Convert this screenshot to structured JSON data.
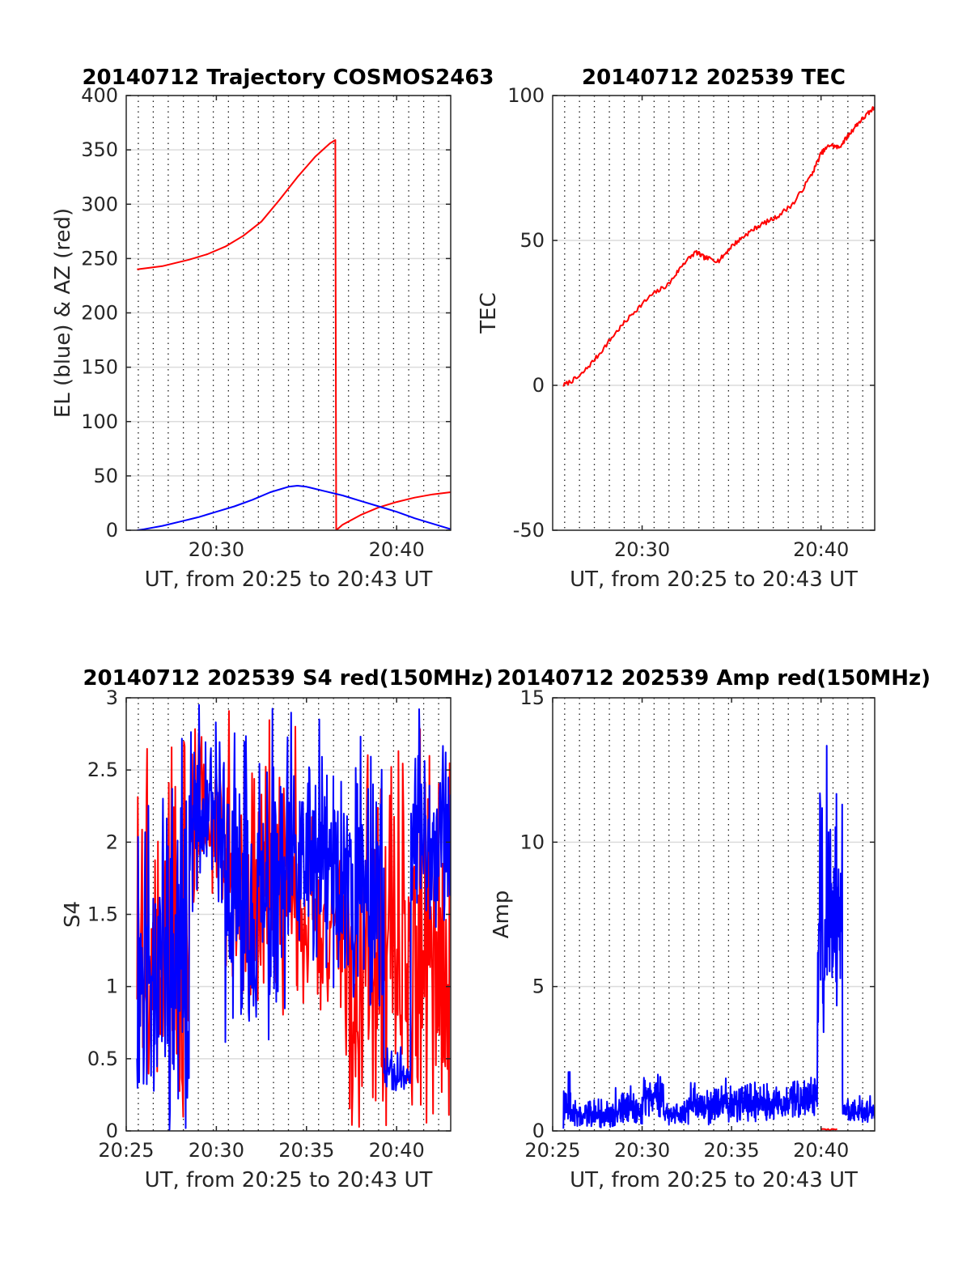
{
  "figure": {
    "background": "#ffffff",
    "colors": {
      "red": "#ff0000",
      "blue": "#0000ff",
      "axis": "#262626",
      "grid": "#dcdcdc"
    }
  },
  "chart_data": [
    {
      "id": "traj",
      "type": "line",
      "title": "20140712 Trajectory COSMOS2463",
      "xlabel": "UT, from 20:25 to 20:43 UT",
      "ylabel": "EL (blue) & AZ (red)",
      "xlim": [
        25,
        43
      ],
      "ylim": [
        0,
        400
      ],
      "yticks": [
        0,
        50,
        100,
        150,
        200,
        250,
        300,
        350,
        400
      ],
      "xticks": [
        {
          "v": 30,
          "label": "20:30"
        },
        {
          "v": 40,
          "label": "20:40"
        }
      ],
      "grid": true,
      "series": [
        {
          "color": "#ff0000",
          "kind": "polyline",
          "points": [
            [
              25.6,
              240
            ],
            [
              27,
              243
            ],
            [
              28.5,
              249
            ],
            [
              29.5,
              254
            ],
            [
              30.5,
              261
            ],
            [
              31.5,
              271
            ],
            [
              32.5,
              284
            ],
            [
              33.5,
              304
            ],
            [
              34.5,
              325
            ],
            [
              35.5,
              344
            ],
            [
              36.3,
              356
            ],
            [
              36.6,
              359
            ],
            [
              36.65,
              0
            ],
            [
              37,
              5
            ],
            [
              38,
              14
            ],
            [
              39,
              21
            ],
            [
              40,
              26
            ],
            [
              41,
              30
            ],
            [
              42,
              33
            ],
            [
              43,
              35
            ]
          ]
        },
        {
          "color": "#0000ff",
          "kind": "polyline",
          "points": [
            [
              25.6,
              0
            ],
            [
              26,
              1
            ],
            [
              27,
              4
            ],
            [
              28,
              8
            ],
            [
              29,
              12
            ],
            [
              30,
              17
            ],
            [
              31,
              22
            ],
            [
              32,
              28
            ],
            [
              33,
              35
            ],
            [
              34,
              40
            ],
            [
              34.5,
              41
            ],
            [
              35,
              40
            ],
            [
              36,
              36
            ],
            [
              37,
              32
            ],
            [
              38,
              27
            ],
            [
              39,
              22
            ],
            [
              40,
              17
            ],
            [
              41,
              11
            ],
            [
              42,
              6
            ],
            [
              43,
              1
            ]
          ]
        }
      ]
    },
    {
      "id": "tec",
      "type": "line",
      "title": "20140712 202539 TEC",
      "xlabel": "UT, from 20:25 to 20:43 UT",
      "ylabel": "TEC",
      "xlim": [
        25,
        43
      ],
      "ylim": [
        -50,
        100
      ],
      "yticks": [
        -50,
        0,
        50,
        100
      ],
      "xticks": [
        {
          "v": 30,
          "label": "20:30"
        },
        {
          "v": 40,
          "label": "20:40"
        }
      ],
      "grid": true,
      "series": [
        {
          "color": "#ff0000",
          "kind": "noisy",
          "seed": 7,
          "noise": 0.8,
          "points": [
            [
              25.6,
              0
            ],
            [
              26.5,
              3
            ],
            [
              27.5,
              10
            ],
            [
              28.5,
              18
            ],
            [
              29.5,
              25
            ],
            [
              30.5,
              31
            ],
            [
              31.5,
              35
            ],
            [
              32.3,
              42
            ],
            [
              33,
              46
            ],
            [
              33.5,
              44
            ],
            [
              34.3,
              43
            ],
            [
              35,
              48
            ],
            [
              35.8,
              52
            ],
            [
              36.5,
              55
            ],
            [
              37.5,
              58
            ],
            [
              38.5,
              63
            ],
            [
              39.5,
              73
            ],
            [
              40,
              80
            ],
            [
              40.5,
              83
            ],
            [
              41,
              82
            ],
            [
              41.5,
              86
            ],
            [
              42,
              90
            ],
            [
              42.5,
              93
            ],
            [
              43,
              96
            ]
          ]
        }
      ]
    },
    {
      "id": "s4",
      "type": "line",
      "title": "20140712 202539 S4 red(150MHz)",
      "xlabel": "UT, from 20:25 to 20:43 UT",
      "ylabel": "S4",
      "xlim": [
        25,
        43
      ],
      "ylim": [
        0,
        3
      ],
      "yticks": [
        0,
        0.5,
        1,
        1.5,
        2,
        2.5,
        3
      ],
      "xticks": [
        {
          "v": 25,
          "label": "20:25"
        },
        {
          "v": 30,
          "label": "20:30"
        },
        {
          "v": 35,
          "label": "20:35"
        },
        {
          "v": 40,
          "label": "20:40"
        }
      ],
      "grid": true,
      "series": [
        {
          "color": "#ff0000",
          "kind": "spikes",
          "seed": 3,
          "step": 0.04,
          "segments": [
            [
              25.6,
              28.5,
              0.0,
              3.0
            ],
            [
              28.5,
              30.5,
              1.5,
              3.0
            ],
            [
              30.5,
              34.5,
              0.8,
              3.0
            ],
            [
              34.5,
              37,
              0.8,
              2.4
            ],
            [
              37,
              39.3,
              0.0,
              3.0
            ],
            [
              39.3,
              43,
              0.0,
              3.0
            ]
          ]
        },
        {
          "color": "#0000ff",
          "kind": "spikes",
          "seed": 11,
          "step": 0.03,
          "segments": [
            [
              25.6,
              28.5,
              0.0,
              3.0
            ],
            [
              28.5,
              30.5,
              1.5,
              3.0
            ],
            [
              30.5,
              34,
              0.6,
              3.0
            ],
            [
              34,
              36.5,
              1.0,
              3.0
            ],
            [
              36.5,
              39.3,
              0.8,
              3.0
            ],
            [
              39.3,
              40.8,
              0.25,
              0.6
            ],
            [
              40.8,
              43,
              1.4,
              3.0
            ]
          ]
        }
      ]
    },
    {
      "id": "amp",
      "type": "line",
      "title": "20140712 202539 Amp red(150MHz)",
      "xlabel": "UT, from 20:25 to 20:43 UT",
      "ylabel": "Amp",
      "xlim": [
        25,
        43
      ],
      "ylim": [
        0,
        15
      ],
      "yticks": [
        0,
        5,
        10,
        15
      ],
      "xticks": [
        {
          "v": 25,
          "label": "20:25"
        },
        {
          "v": 30,
          "label": "20:30"
        },
        {
          "v": 35,
          "label": "20:35"
        },
        {
          "v": 40,
          "label": "20:40"
        }
      ],
      "grid": true,
      "series": [
        {
          "color": "#ff0000",
          "kind": "spikes",
          "seed": 5,
          "step": 0.1,
          "segments": [
            [
              40,
              41,
              0.0,
              0.15
            ]
          ]
        },
        {
          "color": "#0000ff",
          "kind": "spikes",
          "seed": 19,
          "step": 0.02,
          "segments": [
            [
              25.6,
              26,
              0.0,
              2.6
            ],
            [
              26,
              28.5,
              0.1,
              1.2
            ],
            [
              28.5,
              30,
              0.2,
              1.6
            ],
            [
              30,
              31.2,
              0.3,
              2.5
            ],
            [
              31.2,
              32.5,
              0.2,
              1.2
            ],
            [
              32.5,
              34,
              0.2,
              1.8
            ],
            [
              34,
              37.5,
              0.2,
              1.9
            ],
            [
              37.5,
              39.8,
              0.3,
              2.0
            ],
            [
              39.8,
              40.3,
              2.0,
              12.8
            ],
            [
              40.3,
              41.2,
              4.0,
              13.4
            ],
            [
              41.2,
              43,
              0.3,
              1.4
            ]
          ]
        }
      ]
    }
  ]
}
